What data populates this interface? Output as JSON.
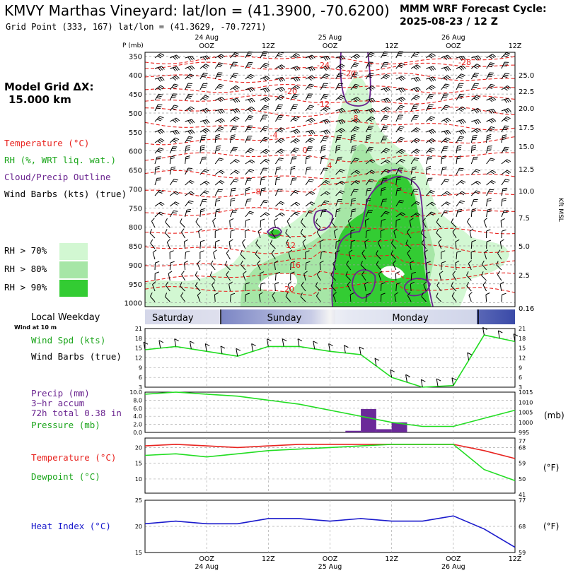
{
  "header": {
    "title": "KMVY Marthas Vineyard:  lat/lon = (41.3900, -70.6200)",
    "subtitle": "Grid Point (333, 167) lat/lon = (41.3629, -70.7271)",
    "cycle_line1": "MMM WRF Forecast Cycle:",
    "cycle_line2": "2025-08-23 / 12  Z"
  },
  "sidebar": {
    "grid_label": "Model Grid ΔX:",
    "grid_value": "15.000 km",
    "legend": [
      {
        "text": "Temperature (°C)",
        "color": "#e8231f"
      },
      {
        "text": "RH (%, WRT liq. wat.)",
        "color": "#1aa51a"
      },
      {
        "text": "Cloud/Precip Outline",
        "color": "#6b2590"
      },
      {
        "text": "Wind Barbs (kts) (true)",
        "color": "#000000"
      }
    ],
    "rh_legend": [
      {
        "text": "RH > 70%",
        "color": "#d2f7d2"
      },
      {
        "text": "RH > 80%",
        "color": "#a6e6a6"
      },
      {
        "text": "RH > 90%",
        "color": "#33cc33"
      }
    ],
    "local_weekday": "Local Weekday",
    "wind_note": "Wind at 10 m",
    "wind_spd": "Wind Spd (kts)",
    "wind_barbs": "Wind Barbs (true)",
    "precip1": "Precip (mm)",
    "precip2": "3−hr accum",
    "precip3": "72h total 0.38 in",
    "pressure": "Pressure (mb)",
    "temperature": "Temperature (°C)",
    "dewpoint": "Dewpoint (°C)",
    "heat_index": "Heat Index (°C)"
  },
  "time_axis": {
    "ticks": [
      "OOZ",
      "12Z",
      "OOZ",
      "12Z",
      "OOZ",
      "12Z"
    ],
    "dates": [
      "24 Aug",
      "25 Aug",
      "26 Aug"
    ],
    "days": [
      "Saturday",
      "Sunday",
      "Monday"
    ]
  },
  "colors": {
    "temp": "#e8231f",
    "rh_dark": "#33cc33",
    "cloud": "#6b2590",
    "wind": "#22dd22",
    "dew": "#22dd22",
    "heat": "#1a1acc",
    "precip": "#6b2a99"
  },
  "chart_data": [
    {
      "type": "area",
      "name": "Time-height cross section",
      "y_axis_label": "P (mb)",
      "p_ticks": [
        350,
        400,
        450,
        500,
        550,
        600,
        650,
        700,
        750,
        800,
        850,
        900,
        950,
        1000
      ],
      "right_axis_label": "Kft MSL",
      "right_ticks": [
        "25.0",
        "22.5",
        "20.0",
        "17.5",
        "15.0",
        "12.5",
        "10.0",
        "7.5",
        "5.0",
        "2.5",
        "0.16"
      ],
      "temp_labels": [
        "-28",
        "-24",
        "-20",
        "-16",
        "-12",
        "-8",
        "-4",
        "0",
        "4",
        "8",
        "12",
        "16",
        "20"
      ]
    },
    {
      "type": "line",
      "name": "Wind speed",
      "ylim": [
        3,
        21
      ],
      "ticks": [
        3,
        6,
        9,
        12,
        15,
        18,
        21
      ],
      "x_hours": [
        0,
        6,
        12,
        18,
        24,
        30,
        36,
        42,
        48,
        54,
        60,
        66,
        72
      ],
      "values": [
        14.5,
        15.5,
        14,
        12.5,
        15.5,
        15.5,
        14,
        13,
        6,
        3,
        3.5,
        19,
        17
      ]
    },
    {
      "type": "bar",
      "name": "Precip and pressure",
      "left_ticks": [
        "0.0",
        "2.0",
        "4.0",
        "6.0",
        "8.0",
        "10.0"
      ],
      "right_ticks": [
        995,
        1000,
        1005,
        1010,
        1015
      ],
      "right_label": "(mb)",
      "precip_x_hours": [
        42,
        45,
        48,
        51
      ],
      "precip_mm": [
        0.4,
        5.8,
        0.8,
        2.5
      ],
      "pressure_x_hours": [
        0,
        6,
        12,
        18,
        24,
        30,
        36,
        42,
        48,
        54,
        60,
        66,
        72
      ],
      "pressure_mb": [
        1014,
        1015,
        1014,
        1013,
        1011,
        1009,
        1006,
        1003,
        1000,
        998,
        998,
        1002,
        1006
      ]
    },
    {
      "type": "line",
      "name": "Temperature and dewpoint",
      "left_ticks": [
        10,
        15,
        20
      ],
      "right_ticks": [
        41,
        50,
        59,
        68,
        77
      ],
      "right_label": "(°F)",
      "x_hours": [
        0,
        6,
        12,
        18,
        24,
        30,
        36,
        42,
        48,
        54,
        60,
        66,
        72
      ],
      "temperature_c": [
        20.5,
        21,
        20.5,
        20,
        20.5,
        21,
        21,
        21,
        21,
        21,
        21,
        19,
        16.5
      ],
      "dewpoint_c": [
        17.5,
        18,
        17,
        18,
        19,
        19.5,
        20,
        20.5,
        21,
        21,
        21,
        13,
        9.5
      ]
    },
    {
      "type": "line",
      "name": "Heat index",
      "left_ticks": [
        15,
        20,
        25
      ],
      "right_ticks": [
        59,
        68,
        77
      ],
      "right_label": "(°F)",
      "x_hours": [
        0,
        6,
        12,
        18,
        24,
        30,
        36,
        42,
        48,
        54,
        60,
        66,
        72
      ],
      "values": [
        20.5,
        21,
        20.5,
        20.5,
        21.5,
        21.5,
        21,
        21.5,
        21,
        21,
        22,
        19.5,
        16
      ]
    }
  ]
}
